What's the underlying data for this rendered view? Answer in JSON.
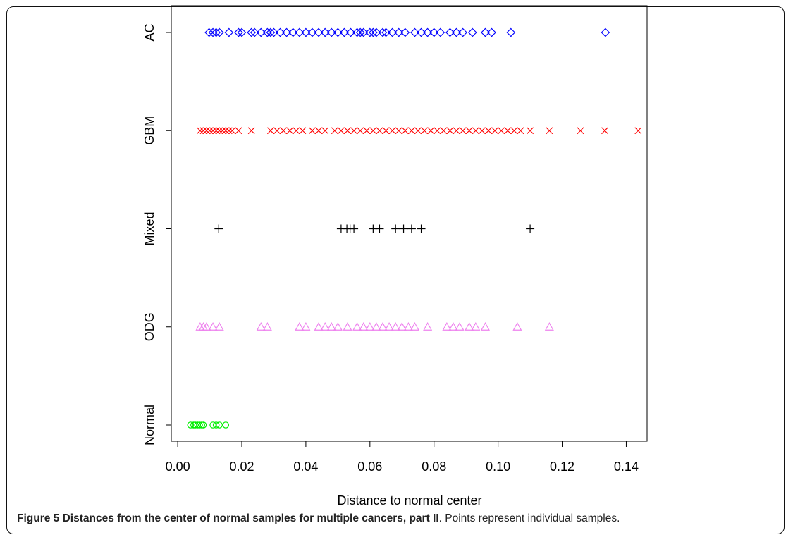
{
  "caption": {
    "label": "Figure 5",
    "bold_text": "Distances from the center of normal samples for multiple cancers, part II",
    "rest": ". Points represent individual samples."
  },
  "chart_data": {
    "type": "scatter",
    "xlabel": "Distance to normal center",
    "ylabel": "",
    "xlim": [
      -0.002,
      0.1465
    ],
    "x_ticks": [
      "0.00",
      "0.02",
      "0.04",
      "0.06",
      "0.08",
      "0.10",
      "0.12",
      "0.14"
    ],
    "x_tick_values": [
      0,
      0.02,
      0.04,
      0.06,
      0.08,
      0.1,
      0.12,
      0.14
    ],
    "categories": [
      "Normal",
      "ODG",
      "Mixed",
      "GBM",
      "AC"
    ],
    "grid": false,
    "series": [
      {
        "name": "AC",
        "color": "#0000ff",
        "marker": "diamond",
        "x": [
          0.0098,
          0.011,
          0.012,
          0.013,
          0.016,
          0.019,
          0.02,
          0.023,
          0.024,
          0.026,
          0.028,
          0.029,
          0.03,
          0.032,
          0.034,
          0.036,
          0.038,
          0.04,
          0.042,
          0.044,
          0.046,
          0.048,
          0.05,
          0.052,
          0.054,
          0.056,
          0.057,
          0.058,
          0.06,
          0.061,
          0.062,
          0.064,
          0.065,
          0.067,
          0.069,
          0.071,
          0.074,
          0.076,
          0.078,
          0.08,
          0.082,
          0.085,
          0.087,
          0.089,
          0.092,
          0.096,
          0.098,
          0.104,
          0.1335
        ]
      },
      {
        "name": "GBM",
        "color": "#ff0000",
        "marker": "x",
        "x": [
          0.007,
          0.008,
          0.009,
          0.01,
          0.011,
          0.012,
          0.013,
          0.014,
          0.015,
          0.016,
          0.017,
          0.019,
          0.023,
          0.029,
          0.031,
          0.033,
          0.035,
          0.037,
          0.039,
          0.042,
          0.044,
          0.046,
          0.049,
          0.051,
          0.053,
          0.055,
          0.057,
          0.059,
          0.061,
          0.063,
          0.065,
          0.067,
          0.069,
          0.071,
          0.073,
          0.075,
          0.077,
          0.079,
          0.081,
          0.083,
          0.085,
          0.087,
          0.089,
          0.091,
          0.093,
          0.095,
          0.097,
          0.099,
          0.101,
          0.103,
          0.105,
          0.107,
          0.11,
          0.116,
          0.1257,
          0.1333,
          0.1437
        ]
      },
      {
        "name": "Mixed",
        "color": "#000000",
        "marker": "plus",
        "x": [
          0.0128,
          0.051,
          0.0528,
          0.0538,
          0.055,
          0.061,
          0.063,
          0.068,
          0.0705,
          0.073,
          0.076,
          0.11
        ]
      },
      {
        "name": "ODG",
        "color": "#ee82ee",
        "marker": "triangle",
        "x": [
          0.007,
          0.008,
          0.009,
          0.011,
          0.013,
          0.026,
          0.028,
          0.038,
          0.04,
          0.044,
          0.046,
          0.048,
          0.05,
          0.053,
          0.056,
          0.058,
          0.06,
          0.062,
          0.064,
          0.066,
          0.068,
          0.07,
          0.072,
          0.074,
          0.078,
          0.084,
          0.086,
          0.088,
          0.091,
          0.093,
          0.096,
          0.106,
          0.116
        ]
      },
      {
        "name": "Normal",
        "color": "#00ee00",
        "marker": "circle",
        "x": [
          0.004,
          0.005,
          0.0055,
          0.0062,
          0.0068,
          0.0075,
          0.008,
          0.011,
          0.012,
          0.013,
          0.015
        ]
      }
    ]
  }
}
